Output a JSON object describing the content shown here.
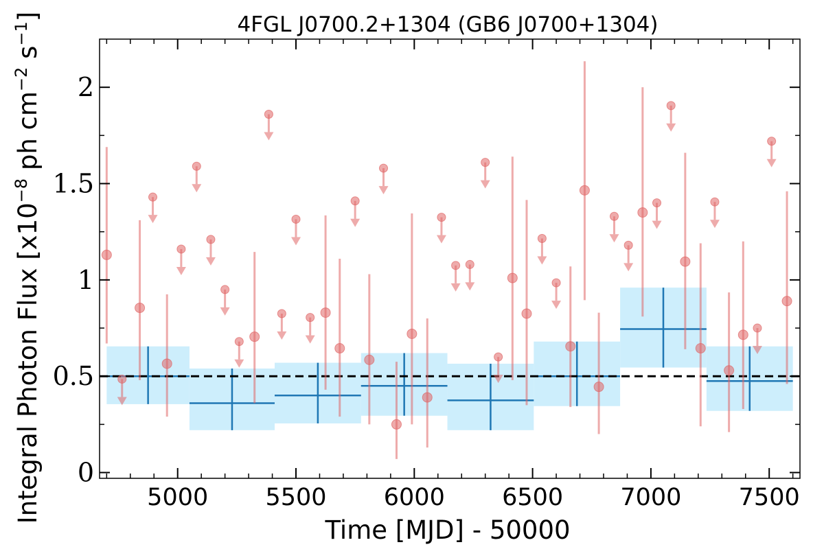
{
  "chart_data": {
    "type": "scatter",
    "title": "4FGL J0700.2+1304 (GB6 J0700+1304)",
    "xlabel": "Time [MJD] - 50000",
    "ylabel_main": "Integral Photon Flux [x10",
    "ylabel_exp": "−8",
    "ylabel_mid": " ph cm",
    "ylabel_exp2": "−2",
    "ylabel_tail": " s",
    "ylabel_exp3": "−1",
    "ylabel_end": "]",
    "xlim": [
      4670,
      7630
    ],
    "ylim": [
      -0.03,
      2.25
    ],
    "xticks": [
      5000,
      5500,
      6000,
      6500,
      7000,
      7500
    ],
    "xtick_labels": [
      "5000",
      "5500",
      "6000",
      "6500",
      "7000",
      "7500"
    ],
    "yticks": [
      0,
      0.5,
      1,
      1.5,
      2
    ],
    "ytick_labels": [
      "0",
      "0.5",
      "1",
      "1.5",
      "2"
    ],
    "reference_line": 0.5,
    "colors": {
      "points": "#e06666",
      "points_alpha": 0.55,
      "bins_fill": "#cdeefc",
      "bins_line": "#1f77b4",
      "reference": "#000000"
    },
    "measurements": [
      {
        "x": 4700,
        "y": 1.13,
        "lo": 0.67,
        "hi": 1.69
      },
      {
        "x": 4840,
        "y": 0.855,
        "lo": 0.48,
        "hi": 1.31
      },
      {
        "x": 4955,
        "y": 0.565,
        "lo": 0.29,
        "hi": 0.925
      },
      {
        "x": 5325,
        "y": 0.705,
        "lo": 0.36,
        "hi": 1.145
      },
      {
        "x": 5625,
        "y": 0.83,
        "lo": 0.43,
        "hi": 1.335
      },
      {
        "x": 5685,
        "y": 0.645,
        "lo": 0.29,
        "hi": 1.11
      },
      {
        "x": 5810,
        "y": 0.585,
        "lo": 0.25,
        "hi": 1.03
      },
      {
        "x": 5925,
        "y": 0.25,
        "lo": 0.07,
        "hi": 0.575
      },
      {
        "x": 5990,
        "y": 0.72,
        "lo": 0.25,
        "hi": 1.345
      },
      {
        "x": 6055,
        "y": 0.39,
        "lo": 0.13,
        "hi": 0.8
      },
      {
        "x": 6415,
        "y": 1.01,
        "lo": 0.48,
        "hi": 1.64
      },
      {
        "x": 6475,
        "y": 0.825,
        "lo": 0.35,
        "hi": 1.415
      },
      {
        "x": 6660,
        "y": 0.655,
        "lo": 0.34,
        "hi": 1.07
      },
      {
        "x": 6720,
        "y": 1.465,
        "lo": 0.895,
        "hi": 2.135
      },
      {
        "x": 6780,
        "y": 0.445,
        "lo": 0.2,
        "hi": 0.83
      },
      {
        "x": 6965,
        "y": 1.35,
        "lo": 0.81,
        "hi": 2.0
      },
      {
        "x": 7145,
        "y": 1.095,
        "lo": 0.64,
        "hi": 1.66
      },
      {
        "x": 7210,
        "y": 0.645,
        "lo": 0.24,
        "hi": 1.19
      },
      {
        "x": 7330,
        "y": 0.53,
        "lo": 0.21,
        "hi": 0.935
      },
      {
        "x": 7390,
        "y": 0.715,
        "lo": 0.33,
        "hi": 1.2
      },
      {
        "x": 7575,
        "y": 0.89,
        "lo": 0.46,
        "hi": 1.46
      }
    ],
    "upper_limits": [
      {
        "x": 4765,
        "y": 0.485
      },
      {
        "x": 4895,
        "y": 1.43
      },
      {
        "x": 5015,
        "y": 1.16
      },
      {
        "x": 5080,
        "y": 1.59
      },
      {
        "x": 5140,
        "y": 1.21
      },
      {
        "x": 5200,
        "y": 0.95
      },
      {
        "x": 5260,
        "y": 0.68
      },
      {
        "x": 5385,
        "y": 1.86
      },
      {
        "x": 5440,
        "y": 0.825
      },
      {
        "x": 5500,
        "y": 1.315
      },
      {
        "x": 5560,
        "y": 0.805
      },
      {
        "x": 5750,
        "y": 1.41
      },
      {
        "x": 5870,
        "y": 1.58
      },
      {
        "x": 6115,
        "y": 1.325
      },
      {
        "x": 6175,
        "y": 1.075
      },
      {
        "x": 6235,
        "y": 1.08
      },
      {
        "x": 6300,
        "y": 1.61
      },
      {
        "x": 6355,
        "y": 0.6
      },
      {
        "x": 6540,
        "y": 1.215
      },
      {
        "x": 6600,
        "y": 0.985
      },
      {
        "x": 6845,
        "y": 1.33
      },
      {
        "x": 6905,
        "y": 1.18
      },
      {
        "x": 7025,
        "y": 1.4
      },
      {
        "x": 7085,
        "y": 1.905
      },
      {
        "x": 7270,
        "y": 1.405
      },
      {
        "x": 7450,
        "y": 0.75
      },
      {
        "x": 7510,
        "y": 1.72
      }
    ],
    "bins": [
      {
        "x0": 4700,
        "x1": 5050,
        "y": 0.5,
        "ylo": 0.355,
        "yhi": 0.655,
        "ebar_lo": 0.355,
        "ebar_hi": 0.655
      },
      {
        "x0": 5050,
        "x1": 5410,
        "y": 0.36,
        "ylo": 0.22,
        "yhi": 0.54,
        "ebar_lo": 0.22,
        "ebar_hi": 0.54
      },
      {
        "x0": 5410,
        "x1": 5775,
        "y": 0.4,
        "ylo": 0.255,
        "yhi": 0.57,
        "ebar_lo": 0.255,
        "ebar_hi": 0.57
      },
      {
        "x0": 5775,
        "x1": 6140,
        "y": 0.45,
        "ylo": 0.295,
        "yhi": 0.62,
        "ebar_lo": 0.295,
        "ebar_hi": 0.62
      },
      {
        "x0": 6140,
        "x1": 6505,
        "y": 0.375,
        "ylo": 0.22,
        "yhi": 0.565,
        "ebar_lo": 0.22,
        "ebar_hi": 0.565
      },
      {
        "x0": 6505,
        "x1": 6870,
        "y": 0.5,
        "ylo": 0.345,
        "yhi": 0.68,
        "ebar_lo": 0.345,
        "ebar_hi": 0.68
      },
      {
        "x0": 6870,
        "x1": 7235,
        "y": 0.745,
        "ylo": 0.545,
        "yhi": 0.96,
        "ebar_lo": 0.545,
        "ebar_hi": 0.96
      },
      {
        "x0": 7235,
        "x1": 7600,
        "y": 0.475,
        "ylo": 0.32,
        "yhi": 0.655,
        "ebar_lo": 0.32,
        "ebar_hi": 0.655
      }
    ]
  }
}
